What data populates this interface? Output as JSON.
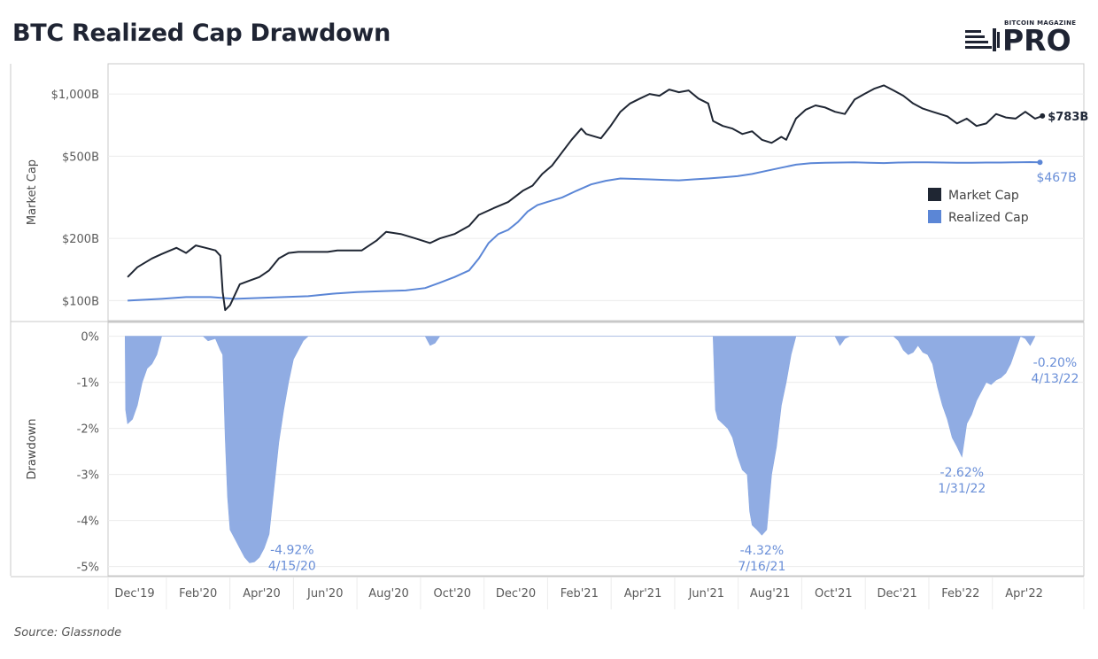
{
  "title": "BTC Realized Cap Drawdown",
  "logo": {
    "small": "BITCOIN MAGAZINE",
    "big": "PRO"
  },
  "source": "Source: Glassnode",
  "colors": {
    "market": "#1f2633",
    "realized": "#5b86d6",
    "fill": "#8aa8e2",
    "grid": "#ececec",
    "axis": "#c8c8c8"
  },
  "chart_data": {
    "type": "line",
    "xlabels": [
      "Dec'19",
      "Feb'20",
      "Apr'20",
      "Jun'20",
      "Aug'20",
      "Oct'20",
      "Dec'20",
      "Feb'21",
      "Apr'21",
      "Jun'21",
      "Aug'21",
      "Oct'21",
      "Dec'21",
      "Feb'22",
      "Apr'22"
    ],
    "top": {
      "ylabel": "Market Cap",
      "scale": "log",
      "ylim": [
        80,
        1400
      ],
      "yticks": [
        "$1,000B",
        "$500B",
        "$200B",
        "$100B"
      ],
      "ytick_values": [
        1000,
        500,
        200,
        100
      ],
      "legend": [
        "Market Cap",
        "Realized Cap"
      ],
      "series": [
        {
          "name": "Market Cap",
          "unit": "USD billions",
          "points": [
            [
              0.8,
              130
            ],
            [
              1.0,
              145
            ],
            [
              1.3,
              160
            ],
            [
              1.5,
              168
            ],
            [
              1.8,
              180
            ],
            [
              2.0,
              170
            ],
            [
              2.2,
              185
            ],
            [
              2.4,
              180
            ],
            [
              2.6,
              175
            ],
            [
              2.7,
              165
            ],
            [
              2.75,
              110
            ],
            [
              2.8,
              90
            ],
            [
              2.9,
              95
            ],
            [
              3.1,
              120
            ],
            [
              3.3,
              125
            ],
            [
              3.5,
              130
            ],
            [
              3.7,
              140
            ],
            [
              3.9,
              160
            ],
            [
              4.1,
              170
            ],
            [
              4.3,
              172
            ],
            [
              4.6,
              172
            ],
            [
              4.9,
              172
            ],
            [
              5.1,
              175
            ],
            [
              5.3,
              175
            ],
            [
              5.6,
              175
            ],
            [
              5.9,
              195
            ],
            [
              6.1,
              215
            ],
            [
              6.4,
              210
            ],
            [
              6.7,
              200
            ],
            [
              7.0,
              190
            ],
            [
              7.2,
              200
            ],
            [
              7.5,
              210
            ],
            [
              7.8,
              230
            ],
            [
              8.0,
              260
            ],
            [
              8.3,
              280
            ],
            [
              8.6,
              300
            ],
            [
              8.9,
              340
            ],
            [
              9.1,
              360
            ],
            [
              9.3,
              410
            ],
            [
              9.5,
              450
            ],
            [
              9.7,
              520
            ],
            [
              9.9,
              600
            ],
            [
              10.1,
              680
            ],
            [
              10.2,
              640
            ],
            [
              10.5,
              610
            ],
            [
              10.7,
              700
            ],
            [
              10.9,
              820
            ],
            [
              11.1,
              900
            ],
            [
              11.3,
              950
            ],
            [
              11.5,
              1000
            ],
            [
              11.7,
              980
            ],
            [
              11.9,
              1050
            ],
            [
              12.1,
              1020
            ],
            [
              12.3,
              1040
            ],
            [
              12.5,
              950
            ],
            [
              12.7,
              900
            ],
            [
              12.8,
              740
            ],
            [
              13.0,
              700
            ],
            [
              13.2,
              680
            ],
            [
              13.4,
              640
            ],
            [
              13.6,
              660
            ],
            [
              13.8,
              600
            ],
            [
              14.0,
              580
            ],
            [
              14.2,
              620
            ],
            [
              14.3,
              600
            ],
            [
              14.5,
              760
            ],
            [
              14.7,
              840
            ],
            [
              14.9,
              880
            ],
            [
              15.1,
              860
            ],
            [
              15.3,
              820
            ],
            [
              15.5,
              800
            ],
            [
              15.7,
              940
            ],
            [
              15.9,
              1000
            ],
            [
              16.1,
              1060
            ],
            [
              16.3,
              1100
            ],
            [
              16.5,
              1040
            ],
            [
              16.7,
              980
            ],
            [
              16.9,
              900
            ],
            [
              17.1,
              850
            ],
            [
              17.3,
              820
            ],
            [
              17.6,
              780
            ],
            [
              17.8,
              720
            ],
            [
              18.0,
              760
            ],
            [
              18.2,
              700
            ],
            [
              18.4,
              720
            ],
            [
              18.6,
              800
            ],
            [
              18.8,
              770
            ],
            [
              19.0,
              760
            ],
            [
              19.2,
              820
            ],
            [
              19.4,
              760
            ],
            [
              19.55,
              783
            ]
          ]
        },
        {
          "name": "Realized Cap",
          "unit": "USD billions",
          "end_label": "$467B",
          "points": [
            [
              0.8,
              100
            ],
            [
              1.5,
              102
            ],
            [
              2.0,
              104
            ],
            [
              2.5,
              104
            ],
            [
              3.0,
              102
            ],
            [
              3.5,
              103
            ],
            [
              4.0,
              104
            ],
            [
              4.5,
              105
            ],
            [
              5.0,
              108
            ],
            [
              5.5,
              110
            ],
            [
              6.0,
              111
            ],
            [
              6.5,
              112
            ],
            [
              6.9,
              115
            ],
            [
              7.2,
              122
            ],
            [
              7.5,
              130
            ],
            [
              7.8,
              140
            ],
            [
              8.0,
              160
            ],
            [
              8.2,
              190
            ],
            [
              8.4,
              210
            ],
            [
              8.6,
              220
            ],
            [
              8.8,
              240
            ],
            [
              9.0,
              270
            ],
            [
              9.2,
              290
            ],
            [
              9.4,
              300
            ],
            [
              9.7,
              315
            ],
            [
              10.0,
              340
            ],
            [
              10.3,
              365
            ],
            [
              10.6,
              380
            ],
            [
              10.9,
              390
            ],
            [
              11.2,
              388
            ],
            [
              11.5,
              386
            ],
            [
              11.8,
              384
            ],
            [
              12.1,
              382
            ],
            [
              12.4,
              386
            ],
            [
              12.7,
              390
            ],
            [
              13.0,
              395
            ],
            [
              13.3,
              400
            ],
            [
              13.6,
              410
            ],
            [
              13.9,
              425
            ],
            [
              14.2,
              440
            ],
            [
              14.5,
              455
            ],
            [
              14.8,
              462
            ],
            [
              15.1,
              465
            ],
            [
              15.4,
              466
            ],
            [
              15.7,
              467
            ],
            [
              16.0,
              465
            ],
            [
              16.3,
              463
            ],
            [
              16.6,
              466
            ],
            [
              16.9,
              467
            ],
            [
              17.2,
              467
            ],
            [
              17.5,
              466
            ],
            [
              17.8,
              465
            ],
            [
              18.1,
              465
            ],
            [
              18.4,
              466
            ],
            [
              18.7,
              466
            ],
            [
              19.0,
              467
            ],
            [
              19.3,
              468
            ],
            [
              19.5,
              467
            ]
          ]
        }
      ],
      "end_labels": {
        "market": "$783B",
        "realized": "$467B"
      }
    },
    "bottom": {
      "ylabel": "Drawdown",
      "ylim": [
        -5.2,
        0.3
      ],
      "yticks": [
        "0%",
        "-1%",
        "-2%",
        "-3%",
        "-4%",
        "-5%"
      ],
      "ytick_values": [
        0,
        -1,
        -2,
        -3,
        -4,
        -5
      ],
      "series": [
        {
          "name": "Realized Cap Drawdown",
          "unit": "%",
          "points": [
            [
              0.75,
              0
            ],
            [
              0.76,
              -1.6
            ],
            [
              0.8,
              -1.9
            ],
            [
              0.9,
              -1.8
            ],
            [
              1.0,
              -1.5
            ],
            [
              1.1,
              -1.0
            ],
            [
              1.2,
              -0.7
            ],
            [
              1.3,
              -0.6
            ],
            [
              1.4,
              -0.4
            ],
            [
              1.5,
              0
            ],
            [
              2.35,
              0
            ],
            [
              2.45,
              -0.1
            ],
            [
              2.6,
              -0.05
            ],
            [
              2.7,
              -0.3
            ],
            [
              2.75,
              -0.4
            ],
            [
              2.8,
              -2.2
            ],
            [
              2.85,
              -3.5
            ],
            [
              2.9,
              -4.2
            ],
            [
              3.0,
              -4.4
            ],
            [
              3.1,
              -4.6
            ],
            [
              3.2,
              -4.8
            ],
            [
              3.3,
              -4.92
            ],
            [
              3.4,
              -4.9
            ],
            [
              3.5,
              -4.8
            ],
            [
              3.6,
              -4.6
            ],
            [
              3.7,
              -4.3
            ],
            [
              3.8,
              -3.3
            ],
            [
              3.9,
              -2.3
            ],
            [
              4.0,
              -1.6
            ],
            [
              4.1,
              -1.0
            ],
            [
              4.2,
              -0.5
            ],
            [
              4.3,
              -0.3
            ],
            [
              4.4,
              -0.1
            ],
            [
              4.5,
              0
            ],
            [
              6.9,
              0
            ],
            [
              7.0,
              -0.2
            ],
            [
              7.1,
              -0.15
            ],
            [
              7.2,
              0
            ],
            [
              12.8,
              0
            ],
            [
              12.85,
              -1.6
            ],
            [
              12.9,
              -1.8
            ],
            [
              13.0,
              -1.9
            ],
            [
              13.1,
              -2.0
            ],
            [
              13.2,
              -2.2
            ],
            [
              13.3,
              -2.6
            ],
            [
              13.4,
              -2.9
            ],
            [
              13.5,
              -3.0
            ],
            [
              13.55,
              -3.8
            ],
            [
              13.6,
              -4.1
            ],
            [
              13.7,
              -4.2
            ],
            [
              13.8,
              -4.32
            ],
            [
              13.9,
              -4.2
            ],
            [
              14.0,
              -3.0
            ],
            [
              14.1,
              -2.4
            ],
            [
              14.2,
              -1.5
            ],
            [
              14.3,
              -1.0
            ],
            [
              14.4,
              -0.4
            ],
            [
              14.5,
              0
            ],
            [
              15.3,
              0
            ],
            [
              15.4,
              -0.2
            ],
            [
              15.5,
              -0.05
            ],
            [
              15.6,
              0
            ],
            [
              16.5,
              0
            ],
            [
              16.6,
              -0.1
            ],
            [
              16.7,
              -0.3
            ],
            [
              16.8,
              -0.4
            ],
            [
              16.9,
              -0.35
            ],
            [
              17.0,
              -0.2
            ],
            [
              17.1,
              -0.35
            ],
            [
              17.2,
              -0.4
            ],
            [
              17.3,
              -0.6
            ],
            [
              17.4,
              -1.1
            ],
            [
              17.5,
              -1.5
            ],
            [
              17.6,
              -1.8
            ],
            [
              17.7,
              -2.2
            ],
            [
              17.8,
              -2.4
            ],
            [
              17.9,
              -2.62
            ],
            [
              18.0,
              -1.9
            ],
            [
              18.1,
              -1.7
            ],
            [
              18.2,
              -1.4
            ],
            [
              18.3,
              -1.2
            ],
            [
              18.4,
              -1.0
            ],
            [
              18.5,
              -1.05
            ],
            [
              18.6,
              -0.95
            ],
            [
              18.7,
              -0.9
            ],
            [
              18.8,
              -0.8
            ],
            [
              18.9,
              -0.6
            ],
            [
              19.0,
              -0.3
            ],
            [
              19.1,
              0
            ],
            [
              19.2,
              -0.05
            ],
            [
              19.3,
              -0.2
            ],
            [
              19.35,
              -0.1
            ],
            [
              19.4,
              0
            ]
          ]
        }
      ],
      "annotations": [
        {
          "text1": "-4.92%",
          "text2": "4/15/20",
          "x": 3.3,
          "y": -4.92
        },
        {
          "text1": "-4.32%",
          "text2": "7/16/21",
          "x": 13.8,
          "y": -4.32
        },
        {
          "text1": "-2.62%",
          "text2": "1/31/22",
          "x": 17.9,
          "y": -2.62
        },
        {
          "text1": "-0.20%",
          "text2": "4/13/22",
          "x": 19.3,
          "y": -0.2
        }
      ]
    }
  }
}
